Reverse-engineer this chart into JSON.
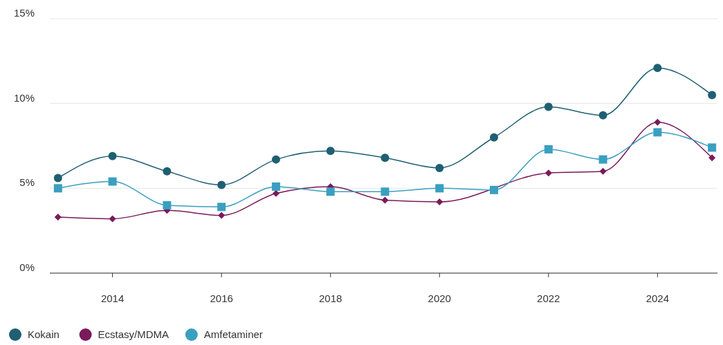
{
  "chart_data": {
    "type": "line",
    "x": [
      2013,
      2014,
      2015,
      2016,
      2017,
      2018,
      2019,
      2020,
      2021,
      2022,
      2023,
      2024,
      2025
    ],
    "series": [
      {
        "name": "Kokain",
        "color": "#1f5f73",
        "marker": "circle",
        "values": [
          5.6,
          6.9,
          6.0,
          5.2,
          6.7,
          7.2,
          6.8,
          6.2,
          8.0,
          9.8,
          9.3,
          12.1,
          10.5
        ]
      },
      {
        "name": "Ecstasy/MDMA",
        "color": "#7a1a5a",
        "marker": "diamond",
        "values": [
          3.3,
          3.2,
          3.7,
          3.4,
          4.7,
          5.1,
          4.3,
          4.2,
          null,
          5.9,
          6.0,
          8.9,
          6.8
        ]
      },
      {
        "name": "Amfetaminer",
        "color": "#3a9fc0",
        "marker": "square",
        "values": [
          5.0,
          5.4,
          4.0,
          3.9,
          5.1,
          4.8,
          4.8,
          5.0,
          4.9,
          7.3,
          6.7,
          8.3,
          7.4
        ]
      }
    ],
    "xlim": [
      2012.85,
      2025.1
    ],
    "xticks": [
      2014,
      2016,
      2018,
      2020,
      2022,
      2024
    ],
    "ylim": [
      0,
      15
    ],
    "yticks": [
      {
        "value": 0,
        "label": "0%"
      },
      {
        "value": 5,
        "label": "5%"
      },
      {
        "value": 10,
        "label": "10%"
      },
      {
        "value": 15,
        "label": "15%"
      }
    ],
    "grid": "y",
    "legend": "bottom left"
  }
}
